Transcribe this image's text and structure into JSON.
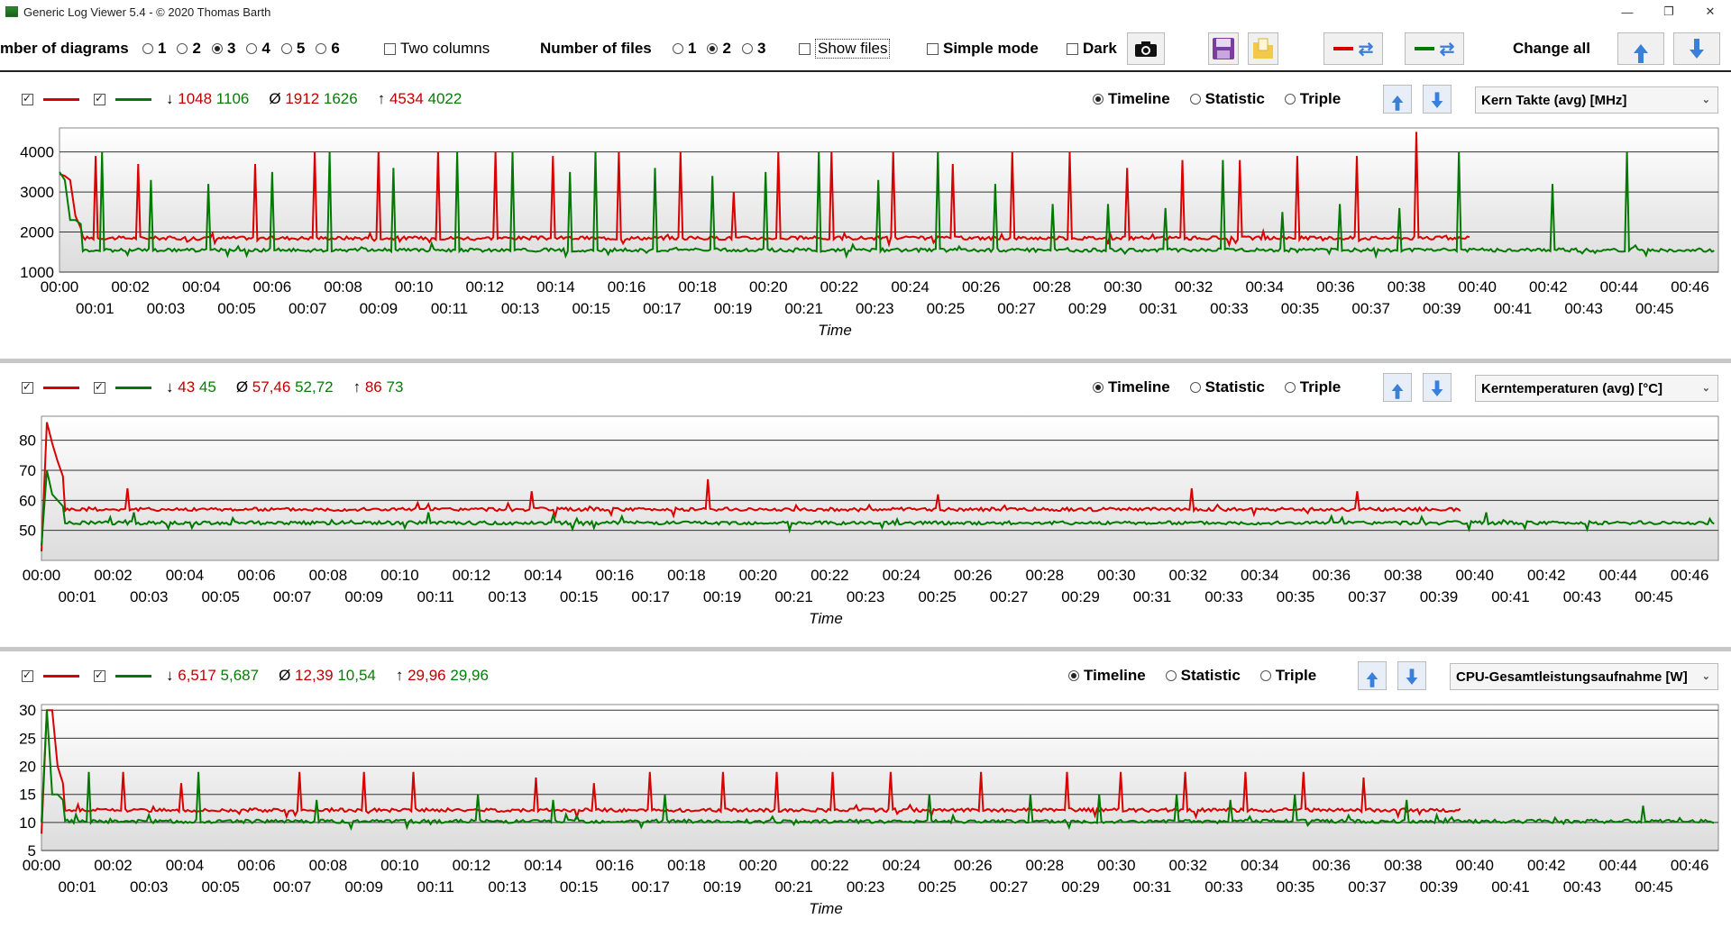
{
  "window": {
    "title": "Generic Log Viewer 5.4 - © 2020 Thomas Barth",
    "minimize": "—",
    "maximize": "❐",
    "close": "✕"
  },
  "toolbar": {
    "num_diagrams_label": "mber of diagrams",
    "diagram_options": [
      "1",
      "2",
      "3",
      "4",
      "5",
      "6"
    ],
    "diagram_selected": "3",
    "two_columns_label": "Two columns",
    "num_files_label": "Number of files",
    "file_options": [
      "1",
      "2",
      "3"
    ],
    "file_selected": "2",
    "show_files_label": "Show files",
    "simple_mode_label": "Simple mode",
    "dark_label": "Dark",
    "change_all_label": "Change all"
  },
  "colors": {
    "series1": "#d90000",
    "series2": "#007a00",
    "accent": "#3a7fd8"
  },
  "icons": [
    "camera-icon",
    "save-icon",
    "folder-icon",
    "swap-icon",
    "arrow-up-icon",
    "arrow-down-icon"
  ],
  "panels": [
    {
      "stats": {
        "min_label": "↓",
        "min1": "1048",
        "min2": "1106",
        "avg_label": "Ø",
        "avg1": "1912",
        "avg2": "1626",
        "max_label": "↑",
        "max1": "4534",
        "max2": "4022"
      },
      "view_options": [
        "Timeline",
        "Statistic",
        "Triple"
      ],
      "view_selected": "Timeline",
      "metric": "Kern Takte (avg) [MHz]",
      "xlabel": "Time"
    },
    {
      "stats": {
        "min_label": "↓",
        "min1": "43",
        "min2": "45",
        "avg_label": "Ø",
        "avg1": "57,46",
        "avg2": "52,72",
        "max_label": "↑",
        "max1": "86",
        "max2": "73"
      },
      "view_options": [
        "Timeline",
        "Statistic",
        "Triple"
      ],
      "view_selected": "Timeline",
      "metric": "Kerntemperaturen (avg) [°C]",
      "xlabel": "Time"
    },
    {
      "stats": {
        "min_label": "↓",
        "min1": "6,517",
        "min2": "5,687",
        "avg_label": "Ø",
        "avg1": "12,39",
        "avg2": "10,54",
        "max_label": "↑",
        "max1": "29,96",
        "max2": "29,96"
      },
      "view_options": [
        "Timeline",
        "Statistic",
        "Triple"
      ],
      "view_selected": "Timeline",
      "metric": "CPU-Gesamtleistungsaufnahme [W]",
      "xlabel": "Time"
    }
  ],
  "chart_data": [
    {
      "type": "line",
      "ylabel": "",
      "xlabel": "Time",
      "yticks": [
        1000,
        2000,
        3000,
        4000
      ],
      "ylim": [
        1000,
        4600
      ],
      "xlim_minutes": [
        0,
        46.8
      ],
      "x_tick_labels": [
        "00:00",
        "00:01",
        "00:02",
        "00:03",
        "00:04",
        "00:05",
        "00:06",
        "00:07",
        "00:08",
        "00:09",
        "00:10",
        "00:11",
        "00:12",
        "00:13",
        "00:14",
        "00:15",
        "00:16",
        "00:17",
        "00:18",
        "00:19",
        "00:20",
        "00:21",
        "00:22",
        "00:23",
        "00:24",
        "00:25",
        "00:26",
        "00:27",
        "00:28",
        "00:29",
        "00:30",
        "00:31",
        "00:32",
        "00:33",
        "00:34",
        "00:35",
        "00:36",
        "00:37",
        "00:38",
        "00:39",
        "00:40",
        "00:41",
        "00:42",
        "00:43",
        "00:44",
        "00:45",
        "00:46"
      ],
      "series": [
        {
          "end_min": 39.8,
          "baseline": 1850,
          "start": [
            3450,
            3400,
            3300,
            2400,
            2100
          ],
          "spikes": [
            [
              1.0,
              3900
            ],
            [
              2.2,
              3700
            ],
            [
              3.9,
              3500
            ],
            [
              5.5,
              3700
            ],
            [
              7.2,
              4000
            ],
            [
              9.0,
              4000
            ],
            [
              10.7,
              4000
            ],
            [
              12.3,
              4000
            ],
            [
              13.9,
              3900
            ],
            [
              15.8,
              4000
            ],
            [
              17.5,
              4000
            ],
            [
              19.0,
              3000
            ],
            [
              20.3,
              4000
            ],
            [
              21.8,
              4000
            ],
            [
              23.5,
              4000
            ],
            [
              25.2,
              3700
            ],
            [
              26.9,
              4000
            ],
            [
              28.5,
              4000
            ],
            [
              30.1,
              3600
            ],
            [
              31.7,
              3800
            ],
            [
              33.3,
              3800
            ],
            [
              34.9,
              3900
            ],
            [
              36.6,
              3900
            ],
            [
              38.3,
              4500
            ]
          ]
        },
        {
          "end_min": 46.7,
          "baseline": 1550,
          "start": [
            3500,
            3300,
            2300,
            2300,
            2200
          ],
          "spikes": [
            [
              1.2,
              4000
            ],
            [
              2.6,
              3300
            ],
            [
              4.2,
              3200
            ],
            [
              6.0,
              3500
            ],
            [
              7.6,
              4000
            ],
            [
              9.4,
              3600
            ],
            [
              11.2,
              4000
            ],
            [
              12.8,
              4000
            ],
            [
              14.4,
              3500
            ],
            [
              15.1,
              4000
            ],
            [
              16.8,
              3600
            ],
            [
              18.4,
              3400
            ],
            [
              19.9,
              3500
            ],
            [
              21.4,
              4000
            ],
            [
              23.1,
              3300
            ],
            [
              24.8,
              4000
            ],
            [
              26.4,
              3200
            ],
            [
              28.0,
              2700
            ],
            [
              29.6,
              2700
            ],
            [
              31.2,
              2600
            ],
            [
              32.8,
              3800
            ],
            [
              34.5,
              2500
            ],
            [
              36.1,
              2700
            ],
            [
              37.8,
              2600
            ],
            [
              39.5,
              4000
            ],
            [
              42.1,
              3200
            ],
            [
              44.2,
              4000
            ]
          ]
        }
      ]
    },
    {
      "type": "line",
      "ylabel": "",
      "xlabel": "Time",
      "yticks": [
        50,
        60,
        70,
        80
      ],
      "ylim": [
        40,
        88
      ],
      "xlim_minutes": [
        0,
        46.8
      ],
      "x_tick_labels": [
        "00:00",
        "00:01",
        "00:02",
        "00:03",
        "00:04",
        "00:05",
        "00:06",
        "00:07",
        "00:08",
        "00:09",
        "00:10",
        "00:11",
        "00:12",
        "00:13",
        "00:14",
        "00:15",
        "00:16",
        "00:17",
        "00:18",
        "00:19",
        "00:20",
        "00:21",
        "00:22",
        "00:23",
        "00:24",
        "00:25",
        "00:26",
        "00:27",
        "00:28",
        "00:29",
        "00:30",
        "00:31",
        "00:32",
        "00:33",
        "00:34",
        "00:35",
        "00:36",
        "00:37",
        "00:38",
        "00:39",
        "00:40",
        "00:41",
        "00:42",
        "00:43",
        "00:44",
        "00:45",
        "00:46"
      ],
      "series": [
        {
          "end_min": 39.6,
          "baseline": 57,
          "start": [
            43,
            86,
            79,
            73,
            68
          ],
          "spikes": [
            [
              2.4,
              64
            ],
            [
              13.7,
              63
            ],
            [
              18.6,
              67
            ],
            [
              25.0,
              62
            ],
            [
              32.1,
              64
            ],
            [
              36.7,
              63
            ]
          ]
        },
        {
          "end_min": 46.7,
          "baseline": 52.5,
          "start": [
            45,
            70,
            62,
            60,
            58
          ],
          "spikes": [
            [
              2.6,
              56
            ],
            [
              10.8,
              56
            ],
            [
              14.3,
              55
            ],
            [
              20.9,
              50
            ],
            [
              40.3,
              56
            ]
          ]
        }
      ]
    },
    {
      "type": "line",
      "ylabel": "",
      "xlabel": "Time",
      "yticks": [
        5,
        10,
        15,
        20,
        25,
        30
      ],
      "ylim": [
        5,
        31
      ],
      "xlim_minutes": [
        0,
        46.8
      ],
      "x_tick_labels": [
        "00:00",
        "00:01",
        "00:02",
        "00:03",
        "00:04",
        "00:05",
        "00:06",
        "00:07",
        "00:08",
        "00:09",
        "00:10",
        "00:11",
        "00:12",
        "00:13",
        "00:14",
        "00:15",
        "00:16",
        "00:17",
        "00:18",
        "00:19",
        "00:20",
        "00:21",
        "00:22",
        "00:23",
        "00:24",
        "00:25",
        "00:26",
        "00:27",
        "00:28",
        "00:29",
        "00:30",
        "00:31",
        "00:32",
        "00:33",
        "00:34",
        "00:35",
        "00:36",
        "00:37",
        "00:38",
        "00:39",
        "00:40",
        "00:41",
        "00:42",
        "00:43",
        "00:44",
        "00:45",
        "00:46"
      ],
      "series": [
        {
          "end_min": 39.6,
          "baseline": 12.2,
          "start": [
            8,
            30,
            30,
            20,
            17
          ],
          "spikes": [
            [
              2.3,
              19
            ],
            [
              3.9,
              17
            ],
            [
              5.5,
              18
            ],
            [
              7.2,
              19
            ],
            [
              9.0,
              19
            ],
            [
              10.4,
              19
            ],
            [
              13.8,
              18
            ],
            [
              15.4,
              17
            ],
            [
              17.0,
              19
            ],
            [
              19.0,
              19
            ],
            [
              20.5,
              19
            ],
            [
              22.1,
              19
            ],
            [
              23.7,
              19
            ],
            [
              26.2,
              19
            ],
            [
              28.6,
              19
            ],
            [
              30.1,
              19
            ],
            [
              31.9,
              19
            ],
            [
              33.6,
              19
            ],
            [
              35.2,
              19
            ],
            [
              36.9,
              18
            ]
          ]
        },
        {
          "end_min": 46.7,
          "baseline": 10.2,
          "start": [
            10,
            30,
            15,
            15,
            14
          ],
          "spikes": [
            [
              1.3,
              19
            ],
            [
              4.4,
              19
            ],
            [
              7.7,
              14
            ],
            [
              12.2,
              15
            ],
            [
              14.3,
              14
            ],
            [
              17.4,
              15
            ],
            [
              24.8,
              15
            ],
            [
              27.6,
              15
            ],
            [
              29.5,
              15
            ],
            [
              31.7,
              15
            ],
            [
              33.2,
              14
            ],
            [
              35.0,
              15
            ],
            [
              38.1,
              14
            ],
            [
              42.5,
              15
            ],
            [
              44.7,
              13
            ]
          ]
        }
      ]
    }
  ]
}
